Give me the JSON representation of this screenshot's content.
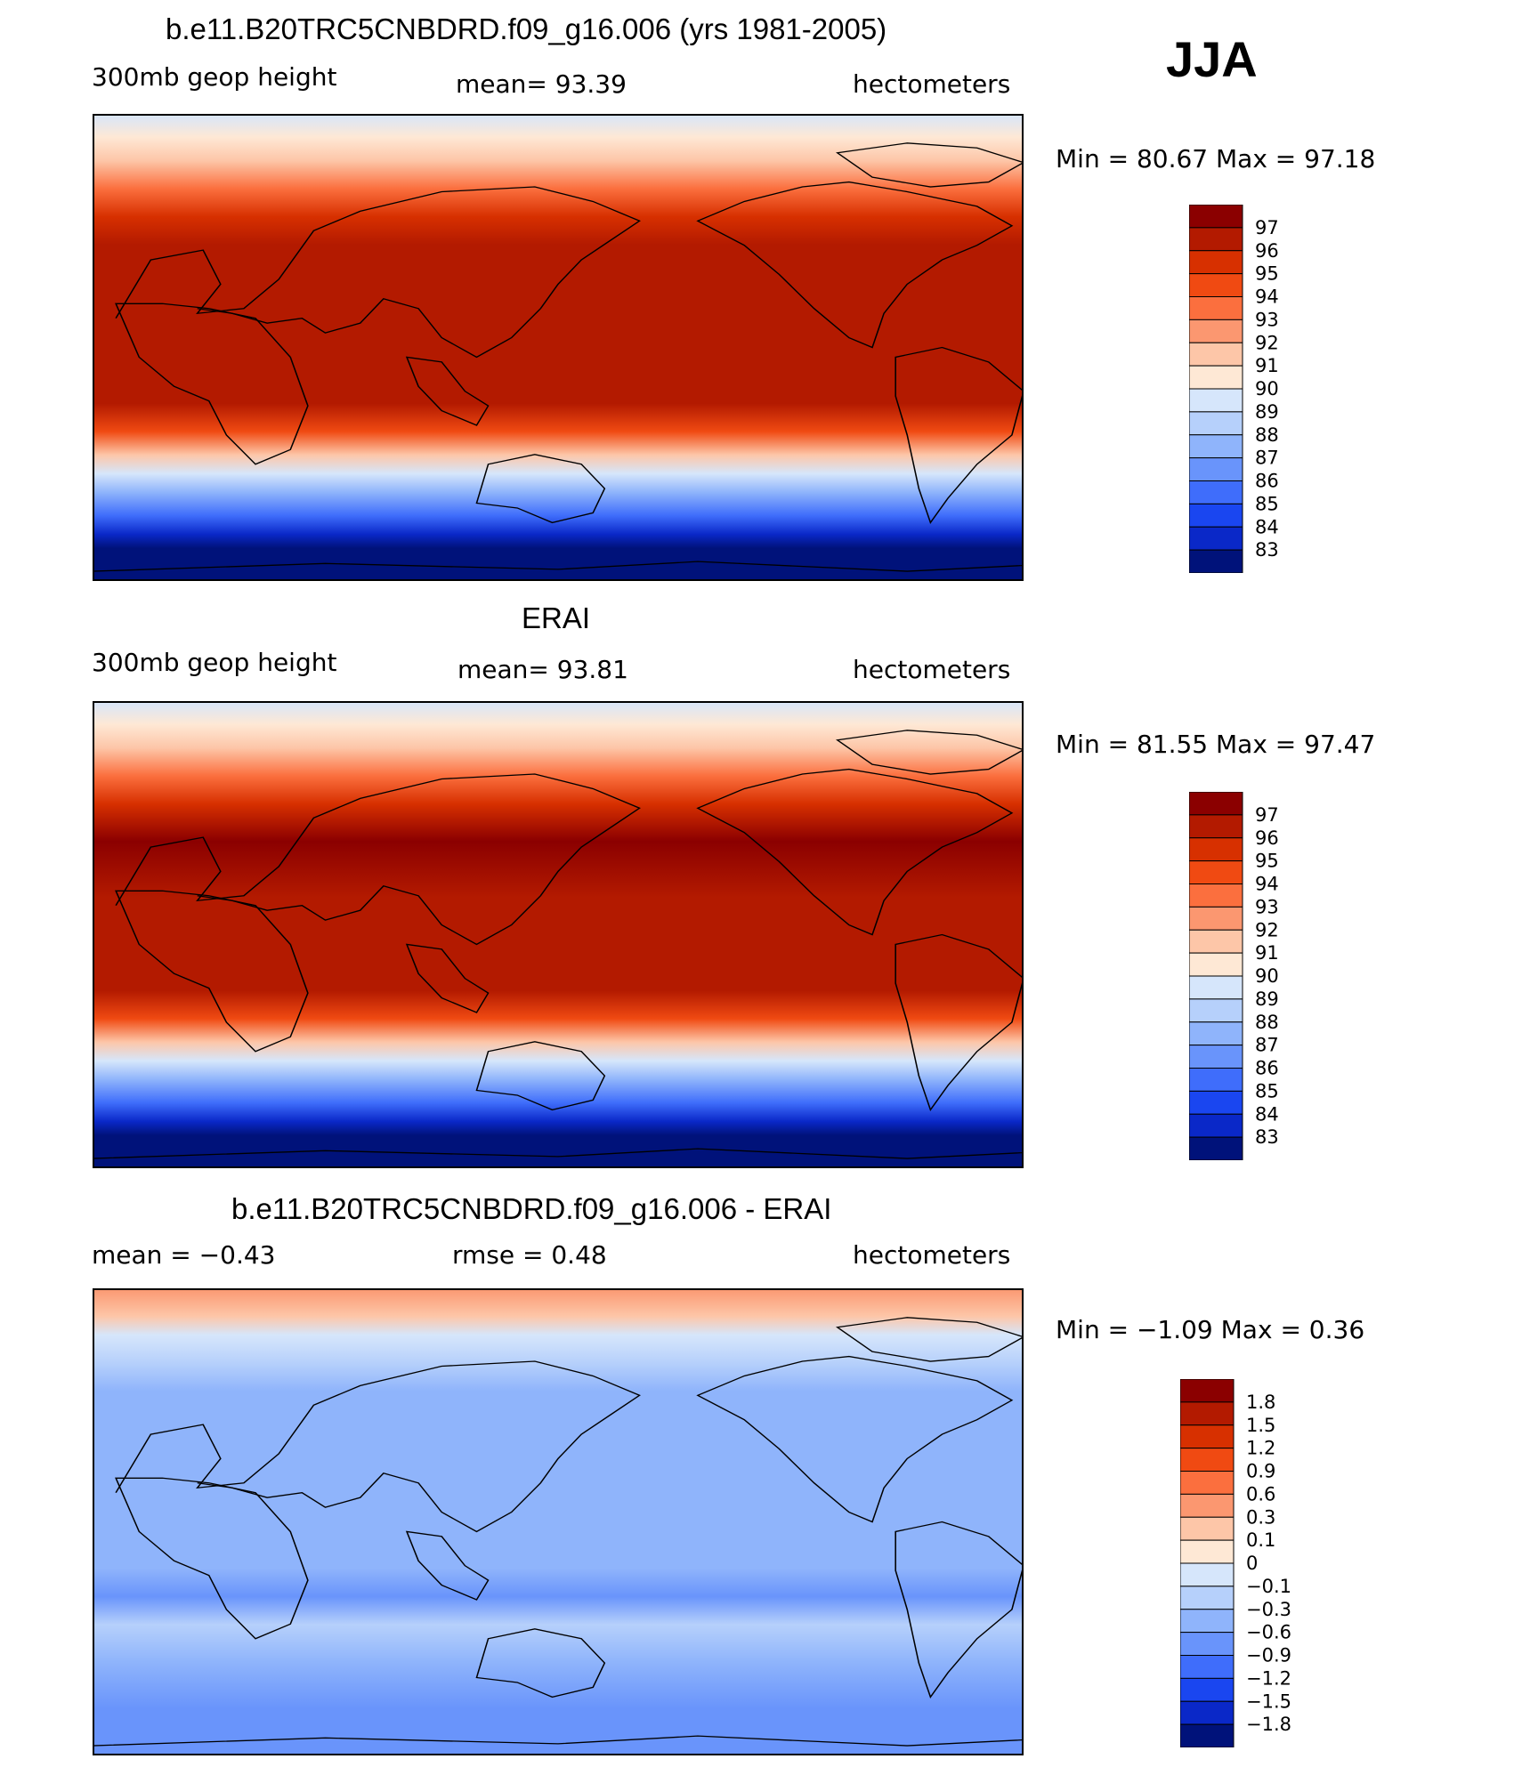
{
  "season": "JJA",
  "panels": [
    {
      "title": "b.e11.B20TRC5CNBDRD.f09_g16.006 (yrs 1981-2005)",
      "left": "300mb geop height",
      "center": "mean=   93.39",
      "right": "hectometers",
      "minmax": "Min =   80.67  Max =   97.18",
      "colorbar": {
        "labels": [
          "97",
          "96",
          "95",
          "94",
          "93",
          "92",
          "91",
          "90",
          "89",
          "88",
          "87",
          "86",
          "85",
          "84",
          "83"
        ],
        "colors": [
          "#8b0000",
          "#b31a00",
          "#d73000",
          "#f04a12",
          "#fb6f3e",
          "#fb9770",
          "#fdc6a8",
          "#fee8d5",
          "#d6e6fb",
          "#b6d0fb",
          "#8fb4fb",
          "#6994fb",
          "#3f6dfb",
          "#1a46f0",
          "#0a28c8",
          "#00127a"
        ]
      },
      "stops": [
        [
          0,
          "#d6e6fb"
        ],
        [
          0.05,
          "#fee8d5"
        ],
        [
          0.1,
          "#fdc6a8"
        ],
        [
          0.16,
          "#fb6f3e"
        ],
        [
          0.22,
          "#d73000"
        ],
        [
          0.28,
          "#b31a00"
        ],
        [
          0.62,
          "#b31a00"
        ],
        [
          0.68,
          "#f04a12"
        ],
        [
          0.73,
          "#fdc6a8"
        ],
        [
          0.77,
          "#d6e6fb"
        ],
        [
          0.81,
          "#8fb4fb"
        ],
        [
          0.86,
          "#3f6dfb"
        ],
        [
          0.9,
          "#0a28c8"
        ],
        [
          0.93,
          "#00127a"
        ],
        [
          1,
          "#00127a"
        ]
      ]
    },
    {
      "title": "ERAI",
      "left": "300mb geop height",
      "center": "mean=   93.81",
      "right": "hectometers",
      "minmax": "Min =   81.55  Max =   97.47",
      "colorbar": {
        "labels": [
          "97",
          "96",
          "95",
          "94",
          "93",
          "92",
          "91",
          "90",
          "89",
          "88",
          "87",
          "86",
          "85",
          "84",
          "83"
        ],
        "colors": [
          "#8b0000",
          "#b31a00",
          "#d73000",
          "#f04a12",
          "#fb6f3e",
          "#fb9770",
          "#fdc6a8",
          "#fee8d5",
          "#d6e6fb",
          "#b6d0fb",
          "#8fb4fb",
          "#6994fb",
          "#3f6dfb",
          "#1a46f0",
          "#0a28c8",
          "#00127a"
        ]
      },
      "stops": [
        [
          0,
          "#d6e6fb"
        ],
        [
          0.05,
          "#fee8d5"
        ],
        [
          0.1,
          "#fdc6a8"
        ],
        [
          0.16,
          "#fb6f3e"
        ],
        [
          0.22,
          "#d73000"
        ],
        [
          0.3,
          "#8b0000"
        ],
        [
          0.42,
          "#b31a00"
        ],
        [
          0.62,
          "#b31a00"
        ],
        [
          0.68,
          "#f04a12"
        ],
        [
          0.73,
          "#fdc6a8"
        ],
        [
          0.77,
          "#d6e6fb"
        ],
        [
          0.81,
          "#8fb4fb"
        ],
        [
          0.86,
          "#3f6dfb"
        ],
        [
          0.9,
          "#0a28c8"
        ],
        [
          0.93,
          "#00127a"
        ],
        [
          1,
          "#00127a"
        ]
      ]
    },
    {
      "title": "b.e11.B20TRC5CNBDRD.f09_g16.006 - ERAI",
      "left": "mean =   −0.43",
      "center": "rmse =    0.48",
      "right": "hectometers",
      "minmax": "Min =   −1.09  Max =    0.36",
      "colorbar": {
        "labels": [
          "1.8",
          "1.5",
          "1.2",
          "0.9",
          "0.6",
          "0.3",
          "0.1",
          "0",
          "−0.1",
          "−0.3",
          "−0.6",
          "−0.9",
          "−1.2",
          "−1.5",
          "−1.8"
        ],
        "colors": [
          "#8b0000",
          "#b31a00",
          "#d73000",
          "#f04a12",
          "#fb6f3e",
          "#fb9770",
          "#fdc6a8",
          "#fee8d5",
          "#d6e6fb",
          "#b6d0fb",
          "#8fb4fb",
          "#6994fb",
          "#3f6dfb",
          "#1a46f0",
          "#0a28c8",
          "#00127a"
        ]
      },
      "stops": [
        [
          0,
          "#fb9770"
        ],
        [
          0.06,
          "#fdc6a8"
        ],
        [
          0.1,
          "#d6e6fb"
        ],
        [
          0.16,
          "#b6d0fb"
        ],
        [
          0.22,
          "#8fb4fb"
        ],
        [
          0.5,
          "#8fb4fb"
        ],
        [
          0.6,
          "#8fb4fb"
        ],
        [
          0.66,
          "#6994fb"
        ],
        [
          0.72,
          "#b6d0fb"
        ],
        [
          0.8,
          "#8fb4fb"
        ],
        [
          0.9,
          "#6994fb"
        ],
        [
          1,
          "#6994fb"
        ]
      ]
    }
  ]
}
